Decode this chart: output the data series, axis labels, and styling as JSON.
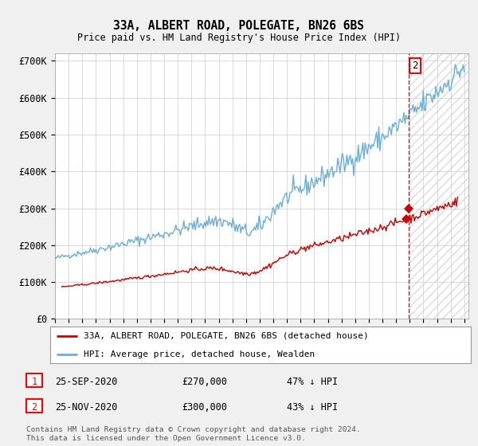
{
  "title": "33A, ALBERT ROAD, POLEGATE, BN26 6BS",
  "subtitle": "Price paid vs. HM Land Registry's House Price Index (HPI)",
  "ylabel_ticks": [
    "£0",
    "£100K",
    "£200K",
    "£300K",
    "£400K",
    "£500K",
    "£600K",
    "£700K"
  ],
  "ytick_values": [
    0,
    100000,
    200000,
    300000,
    400000,
    500000,
    600000,
    700000
  ],
  "ylim": [
    0,
    720000
  ],
  "xlim_start": 1995.0,
  "xlim_end": 2025.3,
  "hpi_color": "#6baed6",
  "price_color": "#cc0000",
  "marker1_date": 2020.73,
  "marker1_price": 270000,
  "marker2_date": 2020.9,
  "marker2_price": 270000,
  "annotation2_label": "2",
  "legend_entry1": "33A, ALBERT ROAD, POLEGATE, BN26 6BS (detached house)",
  "legend_entry2": "HPI: Average price, detached house, Wealden",
  "footnote": "Contains HM Land Registry data © Crown copyright and database right 2024.\nThis data is licensed under the Open Government Licence v3.0.",
  "bg_color": "#f0f0f0",
  "plot_bg_color": "#ffffff",
  "grid_color": "#cccccc",
  "hatch_color": "#cccccc"
}
